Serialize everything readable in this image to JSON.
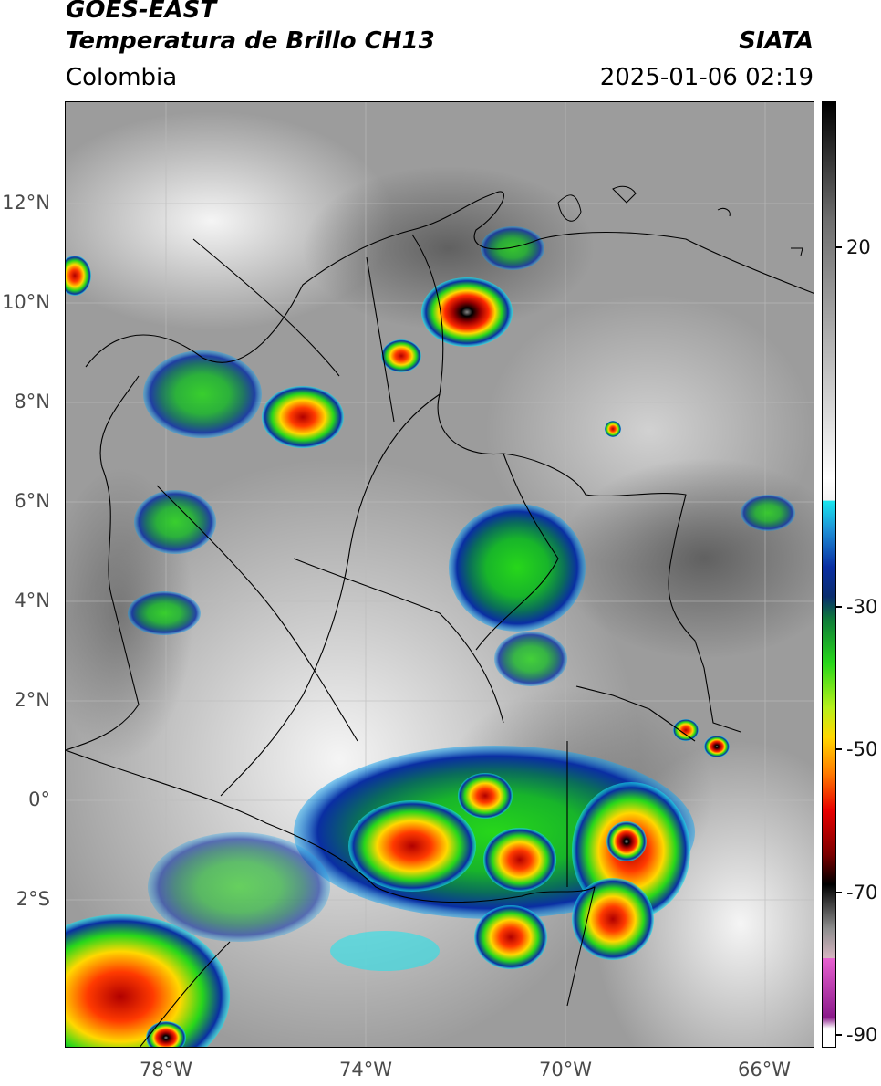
{
  "header": {
    "satellite": "GOES-EAST",
    "product": "Temperatura de Brillo CH13",
    "region": "Colombia",
    "agency": "SIATA",
    "timestamp": "2025-01-06 02:19"
  },
  "map": {
    "lat_labels": [
      {
        "text": "12°N",
        "lat": 12
      },
      {
        "text": "10°N",
        "lat": 10
      },
      {
        "text": "8°N",
        "lat": 8
      },
      {
        "text": "6°N",
        "lat": 6
      },
      {
        "text": "4°N",
        "lat": 4
      },
      {
        "text": "2°N",
        "lat": 2
      },
      {
        "text": "0°",
        "lat": 0
      },
      {
        "text": "2°S",
        "lat": -2
      }
    ],
    "lon_labels": [
      {
        "text": "78°W",
        "lon": -78
      },
      {
        "text": "74°W",
        "lon": -74
      },
      {
        "text": "70°W",
        "lon": -70
      },
      {
        "text": "66°W",
        "lon": -66
      }
    ],
    "extent": {
      "lon_min": -80,
      "lon_max": -65,
      "lat_min": -5,
      "lat_max": 14
    }
  },
  "colorbar": {
    "labels": [
      {
        "text": "20",
        "value": 20
      },
      {
        "text": "-30",
        "value": -30
      },
      {
        "text": "-50",
        "value": -50
      },
      {
        "text": "-70",
        "value": -70
      },
      {
        "text": "-90",
        "value": -90
      }
    ],
    "range": [
      -92,
      36
    ],
    "stops": [
      {
        "value": 36,
        "color": "#000000"
      },
      {
        "value": 20,
        "color": "#6e6e6e"
      },
      {
        "value": -15,
        "color": "#ffffff"
      },
      {
        "value": -18,
        "color": "#f4f4f4"
      },
      {
        "value": -18.01,
        "color": "#19e6ee"
      },
      {
        "value": -22,
        "color": "#1e8fd6"
      },
      {
        "value": -27,
        "color": "#0a2ea3"
      },
      {
        "value": -31,
        "color": "#0a2d6e"
      },
      {
        "value": -34,
        "color": "#0f7a3a"
      },
      {
        "value": -40,
        "color": "#27d71a"
      },
      {
        "value": -46,
        "color": "#b6f01a"
      },
      {
        "value": -50,
        "color": "#ffd800"
      },
      {
        "value": -55,
        "color": "#ff7a00"
      },
      {
        "value": -60,
        "color": "#e80000"
      },
      {
        "value": -66,
        "color": "#7a0000"
      },
      {
        "value": -70,
        "color": "#000000"
      },
      {
        "value": -76,
        "color": "#8e8e8e"
      },
      {
        "value": -80,
        "color": "#d6b4c0"
      },
      {
        "value": -80.01,
        "color": "#e860d0"
      },
      {
        "value": -88,
        "color": "#8a1a8a"
      },
      {
        "value": -89.5,
        "color": "#ffffff"
      },
      {
        "value": -92,
        "color": "#ffffff"
      }
    ]
  }
}
